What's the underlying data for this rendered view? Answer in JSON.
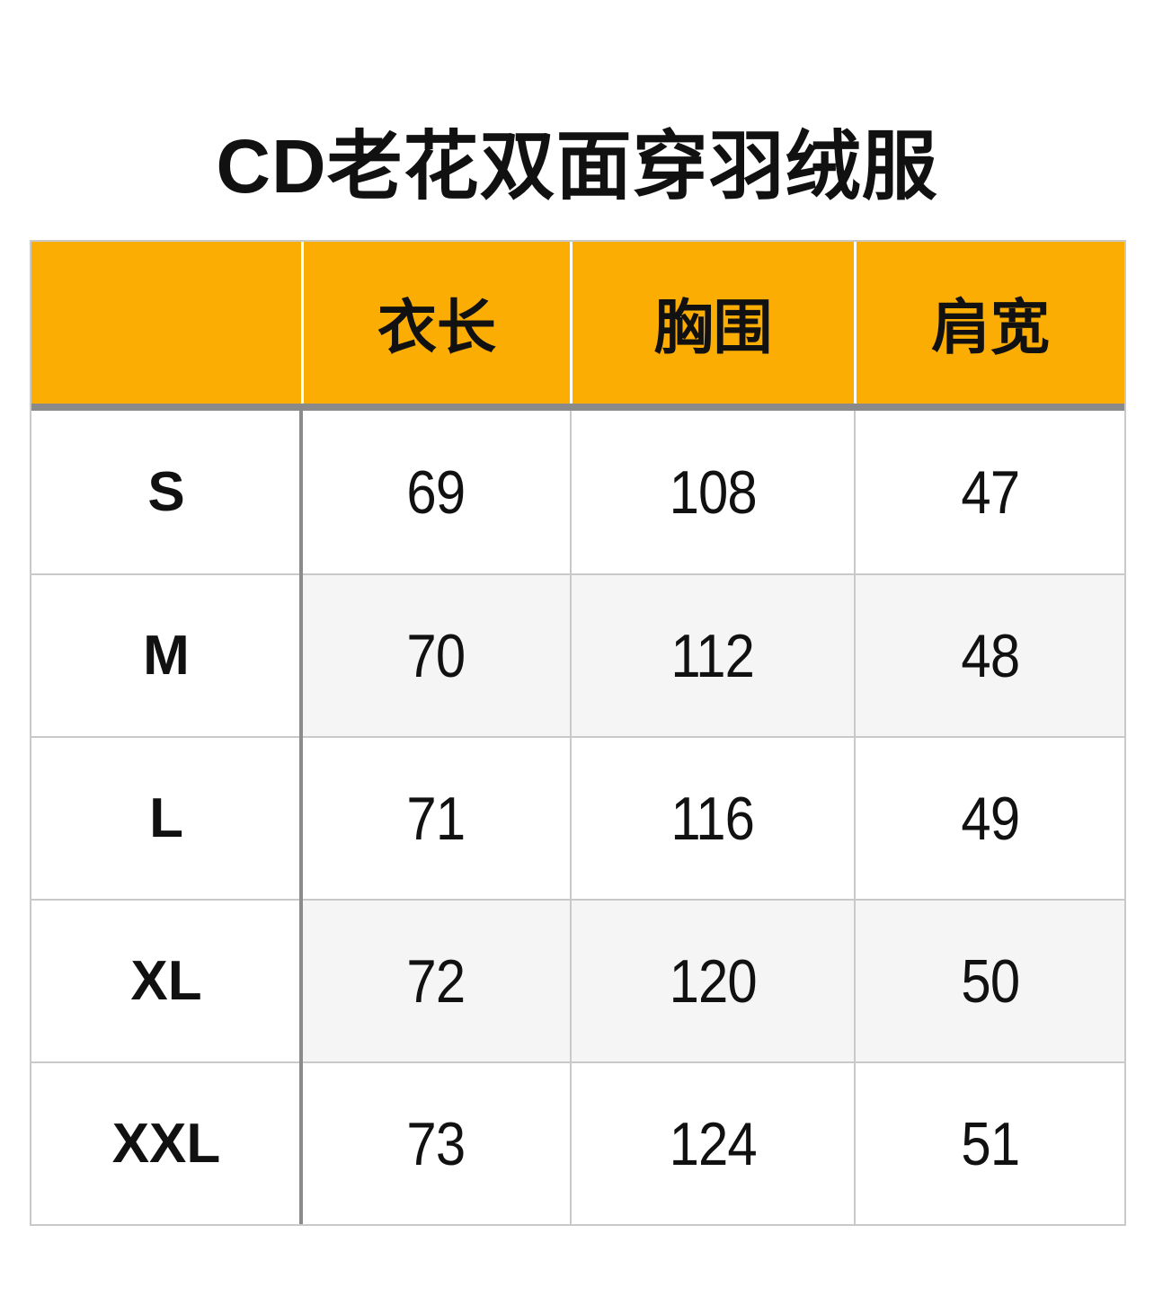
{
  "title": "CD老花双面穿羽绒服",
  "table": {
    "columns": [
      "",
      "衣长",
      "胸围",
      "肩宽"
    ],
    "rows": [
      {
        "size": "S",
        "values": [
          "69",
          "108",
          "47"
        ]
      },
      {
        "size": "M",
        "values": [
          "70",
          "112",
          "48"
        ]
      },
      {
        "size": "L",
        "values": [
          "71",
          "116",
          "49"
        ]
      },
      {
        "size": "XL",
        "values": [
          "72",
          "120",
          "50"
        ]
      },
      {
        "size": "XXL",
        "values": [
          "73",
          "124",
          "51"
        ]
      }
    ]
  },
  "colors": {
    "header_bg": "#FCAD03",
    "header_divider": "#FFFFFF",
    "band": "#8A8A8A",
    "divider_dark": "#8B8B8B",
    "border_light": "#C9C9C9",
    "row_alt_bg": "#F5F5F5",
    "text": "#111111"
  }
}
